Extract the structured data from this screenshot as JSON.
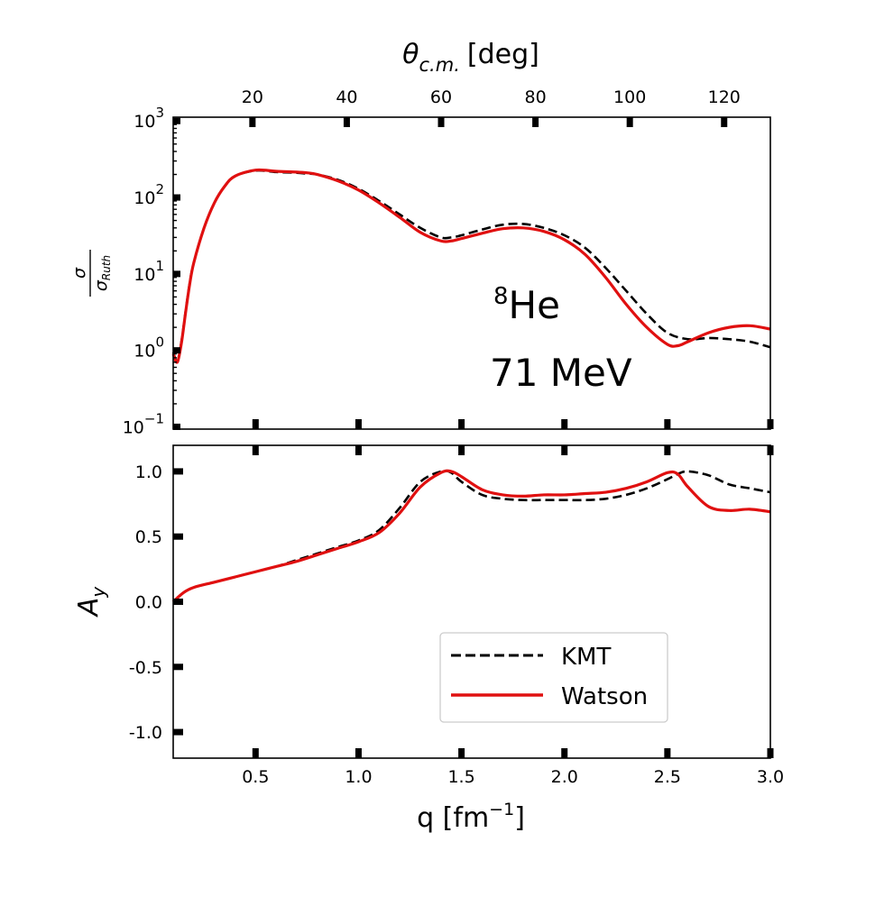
{
  "figure": {
    "nucleus_mass_number": "8",
    "nucleus_symbol": "He",
    "energy_label": "71 MeV"
  },
  "colors": {
    "kmt": "#000000",
    "watson": "#e01010"
  },
  "chart_data": [
    {
      "type": "line",
      "panel": "cross-section",
      "yscale": "log",
      "ylabel": "σ / σ_Ruth",
      "ylabel_num": "σ",
      "ylabel_den": "σ",
      "ylabel_den_sub": "Ruth",
      "top_xlabel_main": "θ",
      "top_xlabel_sub": "c.m.",
      "top_xlabel_unit": "[deg]",
      "top_xlim": [
        3.2,
        129.8
      ],
      "top_xticks": [
        20,
        40,
        60,
        80,
        100,
        120
      ],
      "top_xtick_labels": [
        "20",
        "40",
        "60",
        "80",
        "100",
        "120"
      ],
      "xlim": [
        0.1,
        3.0
      ],
      "ylim_exp": [
        -1.03,
        3.05
      ],
      "ytick_exponents": [
        -1,
        0,
        1,
        2,
        3
      ],
      "ytick_labels": [
        "10",
        "10",
        "10",
        "10",
        "10"
      ],
      "ytick_superscripts": [
        "−1",
        "0",
        "1",
        "2",
        "3"
      ],
      "series": [
        {
          "name": "KMT",
          "style": "dashed",
          "x": [
            0.1,
            0.12,
            0.14,
            0.16,
            0.18,
            0.2,
            0.25,
            0.3,
            0.35,
            0.4,
            0.5,
            0.6,
            0.7,
            0.75,
            0.8,
            0.9,
            1.0,
            1.1,
            1.2,
            1.3,
            1.4,
            1.45,
            1.5,
            1.6,
            1.7,
            1.8,
            1.9,
            2.0,
            2.1,
            2.2,
            2.3,
            2.4,
            2.5,
            2.6,
            2.7,
            2.8,
            2.9,
            3.0
          ],
          "y": [
            0.95,
            0.72,
            1.3,
            3.2,
            7.5,
            14,
            40,
            85,
            140,
            190,
            225,
            215,
            210,
            205,
            200,
            170,
            130,
            90,
            60,
            40,
            30,
            30,
            32,
            38,
            44,
            45,
            40,
            32,
            22,
            12,
            6,
            3,
            1.7,
            1.4,
            1.45,
            1.4,
            1.3,
            1.1
          ]
        },
        {
          "name": "Watson",
          "style": "solid",
          "x": [
            0.1,
            0.12,
            0.14,
            0.16,
            0.18,
            0.2,
            0.25,
            0.3,
            0.35,
            0.4,
            0.5,
            0.6,
            0.7,
            0.75,
            0.8,
            0.9,
            1.0,
            1.1,
            1.2,
            1.3,
            1.4,
            1.45,
            1.5,
            1.6,
            1.7,
            1.8,
            1.9,
            2.0,
            2.1,
            2.2,
            2.3,
            2.4,
            2.5,
            2.55,
            2.6,
            2.7,
            2.8,
            2.9,
            3.0
          ],
          "y": [
            0.9,
            0.7,
            1.25,
            3.1,
            7.3,
            14,
            40,
            85,
            140,
            190,
            228,
            220,
            215,
            210,
            200,
            165,
            125,
            85,
            55,
            35,
            27,
            27,
            29,
            34,
            39,
            40,
            36,
            28,
            18,
            9,
            4,
            2,
            1.2,
            1.15,
            1.3,
            1.7,
            2.0,
            2.1,
            1.9
          ]
        }
      ]
    },
    {
      "type": "line",
      "panel": "analyzing-power",
      "ylabel": "A",
      "ylabel_sub": "y",
      "xlabel": "q [fm",
      "xlabel_sup": "−1",
      "xlabel_close": "]",
      "xlim": [
        0.1,
        3.0
      ],
      "ylim": [
        -1.2,
        1.2
      ],
      "xticks": [
        0.5,
        1.0,
        1.5,
        2.0,
        2.5,
        3.0
      ],
      "xtick_labels": [
        "0.5",
        "1.0",
        "1.5",
        "2.0",
        "2.5",
        "3.0"
      ],
      "yticks": [
        -1.0,
        -0.5,
        0.0,
        0.5,
        1.0
      ],
      "ytick_labels": [
        "-1.0",
        "-0.5",
        "0.0",
        "0.5",
        "1.0"
      ],
      "legend": {
        "position": "lower-right",
        "entries": [
          "KMT",
          "Watson"
        ]
      },
      "series": [
        {
          "name": "KMT",
          "style": "dashed",
          "x": [
            0.1,
            0.15,
            0.2,
            0.3,
            0.4,
            0.5,
            0.6,
            0.7,
            0.8,
            0.9,
            1.0,
            1.1,
            1.2,
            1.3,
            1.4,
            1.45,
            1.5,
            1.6,
            1.7,
            1.8,
            1.9,
            2.0,
            2.1,
            2.2,
            2.3,
            2.4,
            2.5,
            2.55,
            2.6,
            2.7,
            2.8,
            2.9,
            3.0
          ],
          "y": [
            0.0,
            0.07,
            0.11,
            0.15,
            0.19,
            0.23,
            0.27,
            0.32,
            0.37,
            0.42,
            0.47,
            0.55,
            0.72,
            0.92,
            1.0,
            0.99,
            0.92,
            0.82,
            0.79,
            0.78,
            0.78,
            0.78,
            0.78,
            0.79,
            0.82,
            0.87,
            0.94,
            0.98,
            1.0,
            0.97,
            0.9,
            0.87,
            0.84
          ]
        },
        {
          "name": "Watson",
          "style": "solid",
          "x": [
            0.1,
            0.15,
            0.2,
            0.3,
            0.4,
            0.5,
            0.6,
            0.7,
            0.8,
            0.9,
            1.0,
            1.1,
            1.2,
            1.3,
            1.4,
            1.45,
            1.5,
            1.6,
            1.7,
            1.8,
            1.9,
            2.0,
            2.1,
            2.2,
            2.3,
            2.4,
            2.5,
            2.55,
            2.6,
            2.7,
            2.8,
            2.9,
            3.0
          ],
          "y": [
            0.0,
            0.07,
            0.11,
            0.15,
            0.19,
            0.23,
            0.27,
            0.31,
            0.36,
            0.41,
            0.46,
            0.53,
            0.68,
            0.88,
            0.99,
            1.0,
            0.96,
            0.86,
            0.82,
            0.81,
            0.82,
            0.82,
            0.83,
            0.84,
            0.87,
            0.92,
            0.99,
            0.98,
            0.88,
            0.73,
            0.7,
            0.71,
            0.69
          ]
        }
      ]
    }
  ]
}
